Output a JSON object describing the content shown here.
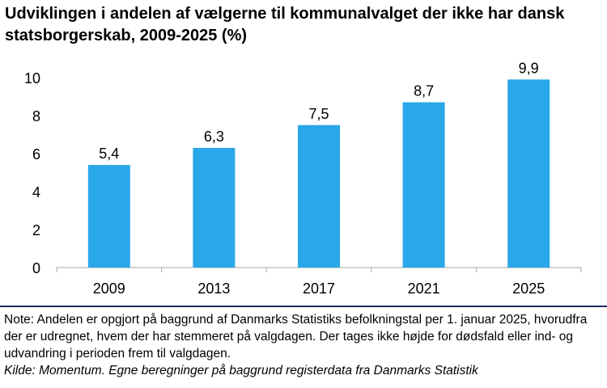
{
  "chart_data": {
    "type": "bar",
    "title": "Udviklingen i andelen af vælgerne til kommunalvalget der ikke har dansk statsborgerskab, 2009-2025 (%)",
    "categories": [
      "2009",
      "2013",
      "2017",
      "2021",
      "2025"
    ],
    "values": [
      5.4,
      6.3,
      7.5,
      8.7,
      9.9
    ],
    "data_labels": [
      "5,4",
      "6,3",
      "7,5",
      "8,7",
      "9,9"
    ],
    "yticks": [
      0,
      2,
      4,
      6,
      8,
      10
    ],
    "ylim": [
      0,
      10
    ],
    "grid": false,
    "bar_color": "#2aa7e9"
  },
  "note": "Note: Andelen er opgjort på baggrund af Danmarks Statistiks befolkningstal per 1. januar 2025, hvorudfra der er udregnet, hvem der har stemmeret på valgdagen. Der tages ikke højde for dødsfald eller ind- og udvandring i perioden frem til valgdagen.",
  "source": "Kilde: Momentum. Egne beregninger på baggrund registerdata fra Danmarks Statistik"
}
